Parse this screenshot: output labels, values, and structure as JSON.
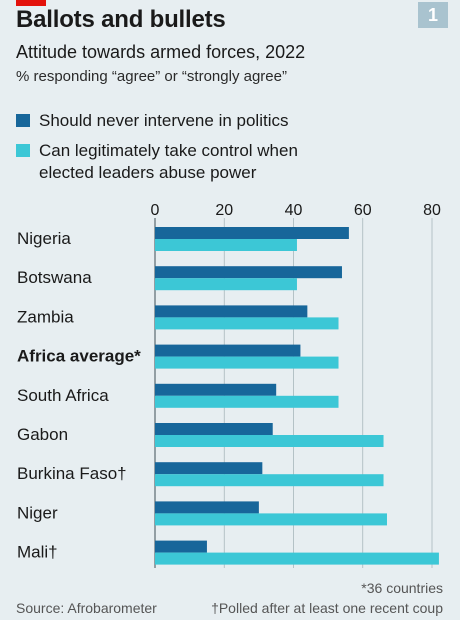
{
  "header": {
    "title": "Ballots and bullets",
    "badge": "1",
    "subtitle": "Attitude towards armed forces, 2022",
    "note": "% responding “agree” or “strongly agree”"
  },
  "colors": {
    "series_dark": "#17669a",
    "series_light": "#3cc7d6",
    "background": "#e7eef1",
    "grid": "#a8b6bc",
    "accent": "#e3120b"
  },
  "chart_data": {
    "type": "bar",
    "orientation": "horizontal",
    "title": "Attitude towards armed forces, 2022",
    "categories": [
      "Nigeria",
      "Botswana",
      "Zambia",
      "Africa average*",
      "South Africa",
      "Gabon",
      "Burkina Faso†",
      "Niger",
      "Mali†"
    ],
    "highlight_category": "Africa average*",
    "series": [
      {
        "name": "Should never intervene in politics",
        "color": "#17669a",
        "values": [
          56,
          54,
          44,
          42,
          35,
          34,
          31,
          30,
          15
        ]
      },
      {
        "name": "Can legitimately take control when elected leaders abuse power",
        "color": "#3cc7d6",
        "values": [
          41,
          41,
          53,
          53,
          53,
          66,
          66,
          67,
          82
        ]
      }
    ],
    "xlim": [
      0,
      80
    ],
    "xticks": [
      0,
      20,
      40,
      60,
      80
    ],
    "tick_position": "top",
    "grid": true,
    "legend_position": "top-left"
  },
  "footer": {
    "footnote_average": "*36 countries",
    "source": "Source: Afrobarometer",
    "footnote_dagger": "†Polled after at least one recent coup"
  }
}
